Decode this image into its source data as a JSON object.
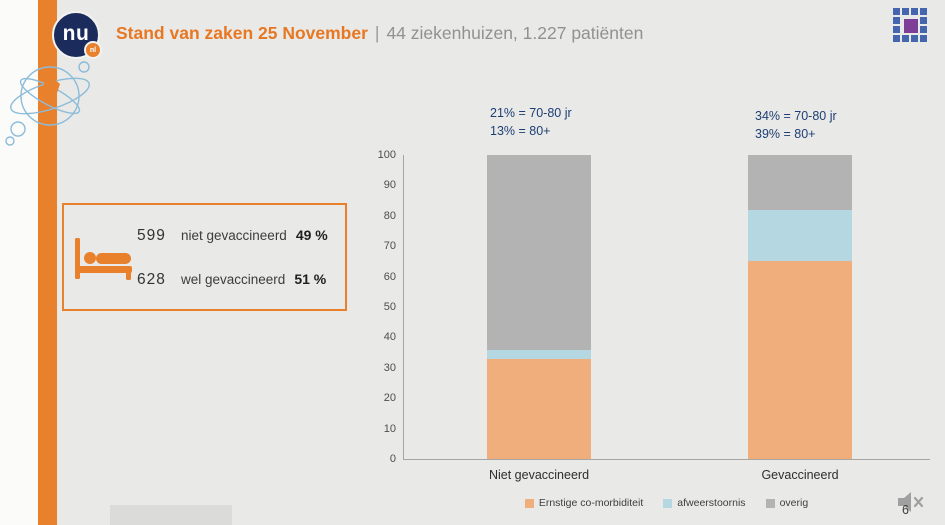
{
  "page": {
    "background": "#e9e9e7",
    "accent_orange": "#e8802c",
    "navy": "#1d3e75"
  },
  "header": {
    "title": "Stand van zaken 25 November",
    "separator": "|",
    "subtitle": "44 ziekenhuizen, 1.227 patiënten"
  },
  "logo": {
    "main": "nu",
    "badge": "nl"
  },
  "infobox": {
    "rows": [
      {
        "value": "599",
        "label": "niet gevaccineerd",
        "percent": "49 %"
      },
      {
        "value": "628",
        "label": "wel gevaccineerd",
        "percent": "51 %"
      }
    ]
  },
  "chart_data": {
    "type": "bar",
    "stacked": true,
    "title": "",
    "categories": [
      "Niet gevaccineerd",
      "Gevaccineerd"
    ],
    "series": [
      {
        "name": "Ernstige co-morbiditeit",
        "color": "#f1ae7d",
        "values": [
          33,
          65
        ]
      },
      {
        "name": "afweerstoornis",
        "color": "#b4d7e2",
        "values": [
          3,
          17
        ]
      },
      {
        "name": "overig",
        "color": "#b3b3b3",
        "values": [
          64,
          18
        ]
      }
    ],
    "ylim": [
      0,
      100
    ],
    "yticks": [
      0,
      10,
      20,
      30,
      40,
      50,
      60,
      70,
      80,
      90,
      100
    ],
    "grid": false,
    "legend_position": "bottom",
    "annotations": [
      {
        "line1": "21% = 70-80 jr",
        "line2": "13% = 80+"
      },
      {
        "line1": "34% = 70-80 jr",
        "line2": "39% = 80+"
      }
    ]
  },
  "player": {
    "page_number": "6"
  }
}
